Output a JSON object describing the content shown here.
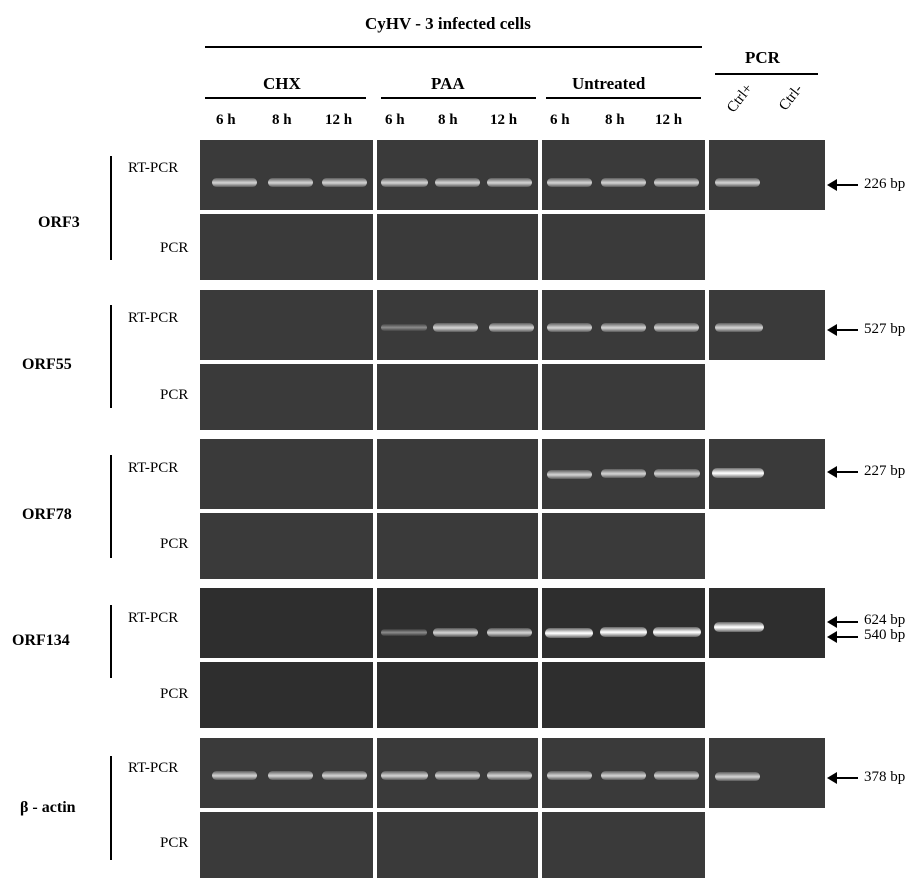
{
  "title": "CyHV - 3 infected cells",
  "pcr_header": "PCR",
  "treatments": [
    "CHX",
    "PAA",
    "Untreated"
  ],
  "timepoints": [
    "6 h",
    "8 h",
    "12 h"
  ],
  "controls": [
    "Ctrl+",
    "Ctrl-"
  ],
  "row_types": {
    "rt": "RT-PCR",
    "pcr": "PCR"
  },
  "genes": [
    {
      "name": "ORF3",
      "sizes": [
        "226 bp"
      ]
    },
    {
      "name": "ORF55",
      "sizes": [
        "527 bp"
      ]
    },
    {
      "name": "ORF78",
      "sizes": [
        "227 bp"
      ]
    },
    {
      "name": "ORF134",
      "sizes": [
        "624 bp",
        "540 bp"
      ]
    },
    {
      "name": "β - actin",
      "sizes": [
        "378 bp"
      ]
    }
  ]
}
